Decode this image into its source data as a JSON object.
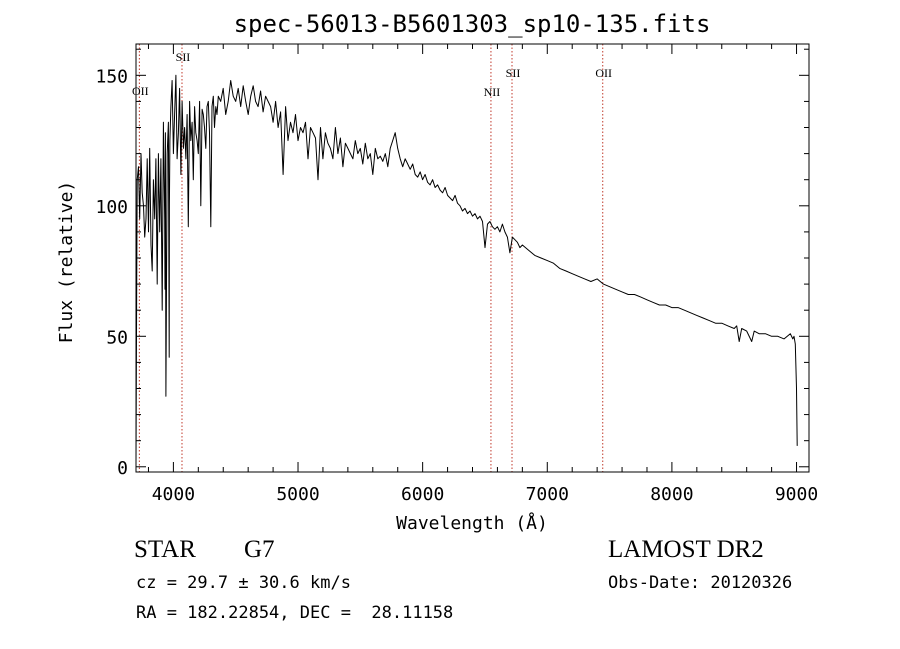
{
  "chart_data": {
    "type": "line",
    "title": "spec-56013-B5601303_sp10-135.fits",
    "xlabel": "Wavelength (Å)",
    "ylabel": "Flux (relative)",
    "xlim": [
      3700,
      9100
    ],
    "ylim": [
      -2,
      162
    ],
    "x_ticks": [
      4000,
      5000,
      6000,
      7000,
      8000,
      9000
    ],
    "y_ticks": [
      0,
      50,
      100,
      150
    ],
    "series": [
      {
        "name": "flux",
        "x": [
          3700,
          3705,
          3710,
          3720,
          3730,
          3740,
          3750,
          3760,
          3770,
          3780,
          3790,
          3800,
          3810,
          3820,
          3830,
          3840,
          3850,
          3860,
          3870,
          3880,
          3890,
          3900,
          3910,
          3920,
          3930,
          3933,
          3936,
          3940,
          3950,
          3960,
          3966,
          3968,
          3972,
          3980,
          3990,
          4000,
          4010,
          4020,
          4030,
          4040,
          4050,
          4060,
          4070,
          4080,
          4090,
          4100,
          4110,
          4120,
          4130,
          4140,
          4150,
          4160,
          4170,
          4180,
          4190,
          4200,
          4210,
          4220,
          4230,
          4240,
          4250,
          4260,
          4270,
          4280,
          4290,
          4300,
          4310,
          4320,
          4330,
          4340,
          4350,
          4360,
          4380,
          4400,
          4420,
          4440,
          4460,
          4480,
          4500,
          4520,
          4540,
          4560,
          4580,
          4600,
          4620,
          4640,
          4660,
          4680,
          4700,
          4720,
          4740,
          4760,
          4780,
          4800,
          4820,
          4840,
          4860,
          4880,
          4900,
          4920,
          4940,
          4960,
          4980,
          5000,
          5020,
          5040,
          5060,
          5080,
          5100,
          5120,
          5140,
          5160,
          5180,
          5200,
          5220,
          5240,
          5260,
          5280,
          5300,
          5320,
          5340,
          5360,
          5380,
          5400,
          5420,
          5440,
          5460,
          5480,
          5500,
          5520,
          5540,
          5560,
          5580,
          5600,
          5620,
          5640,
          5660,
          5680,
          5700,
          5720,
          5740,
          5760,
          5780,
          5800,
          5820,
          5840,
          5860,
          5880,
          5900,
          5920,
          5940,
          5960,
          5980,
          6000,
          6020,
          6040,
          6060,
          6080,
          6100,
          6120,
          6140,
          6160,
          6180,
          6200,
          6220,
          6240,
          6260,
          6280,
          6300,
          6320,
          6340,
          6360,
          6380,
          6400,
          6420,
          6440,
          6460,
          6480,
          6500,
          6520,
          6540,
          6560,
          6580,
          6600,
          6620,
          6640,
          6660,
          6680,
          6700,
          6720,
          6740,
          6760,
          6780,
          6800,
          6850,
          6900,
          6950,
          7000,
          7050,
          7100,
          7150,
          7200,
          7250,
          7300,
          7350,
          7400,
          7450,
          7500,
          7550,
          7600,
          7650,
          7700,
          7750,
          7800,
          7850,
          7900,
          7950,
          8000,
          8050,
          8100,
          8150,
          8200,
          8250,
          8300,
          8350,
          8400,
          8450,
          8500,
          8520,
          8540,
          8560,
          8600,
          8640,
          8660,
          8700,
          8750,
          8800,
          8850,
          8900,
          8950,
          8970,
          8980,
          8990,
          9000,
          9005
        ],
        "y": [
          2,
          60,
          110,
          115,
          95,
          120,
          105,
          100,
          88,
          95,
          118,
          90,
          122,
          85,
          75,
          110,
          95,
          118,
          70,
          120,
          90,
          118,
          60,
          132,
          95,
          68,
          128,
          27,
          120,
          132,
          42,
          100,
          125,
          138,
          148,
          120,
          135,
          150,
          118,
          128,
          145,
          112,
          140,
          122,
          130,
          118,
          135,
          92,
          140,
          125,
          132,
          110,
          138,
          128,
          125,
          120,
          140,
          100,
          137,
          135,
          130,
          122,
          138,
          140,
          128,
          92,
          138,
          142,
          130,
          138,
          135,
          142,
          140,
          145,
          135,
          140,
          148,
          142,
          140,
          145,
          138,
          146,
          140,
          135,
          142,
          146,
          140,
          138,
          144,
          136,
          142,
          140,
          138,
          132,
          140,
          130,
          136,
          112,
          138,
          125,
          132,
          128,
          135,
          125,
          130,
          128,
          132,
          118,
          130,
          128,
          126,
          110,
          130,
          118,
          128,
          124,
          122,
          118,
          130,
          120,
          126,
          115,
          124,
          122,
          120,
          118,
          125,
          120,
          122,
          116,
          124,
          118,
          120,
          112,
          122,
          118,
          119,
          117,
          120,
          115,
          122,
          125,
          128,
          122,
          118,
          115,
          118,
          116,
          114,
          116,
          112,
          111,
          113,
          110,
          112,
          109,
          108,
          110,
          107,
          108,
          106,
          105,
          107,
          104,
          103,
          102,
          104,
          101,
          100,
          98,
          99,
          97,
          98,
          96,
          97,
          95,
          96,
          94,
          84,
          93,
          94,
          92,
          91,
          92,
          90,
          93,
          90,
          88,
          82,
          88,
          87,
          86,
          84,
          85,
          83,
          81,
          80,
          79,
          78,
          76,
          75,
          74,
          73,
          72,
          71,
          72,
          70,
          69,
          68,
          67,
          66,
          66,
          65,
          64,
          63,
          62,
          62,
          61,
          61,
          60,
          59,
          58,
          57,
          56,
          55,
          55,
          54,
          53,
          54,
          48,
          53,
          52,
          48,
          52,
          51,
          51,
          50,
          50,
          49,
          51,
          49,
          50,
          47,
          30,
          8
        ]
      }
    ],
    "lines": [
      {
        "label": "OII",
        "x": 3727
      },
      {
        "label": "SII",
        "x": 4069
      },
      {
        "label": "NII",
        "x": 6548
      },
      {
        "label": "SII",
        "x": 6717
      },
      {
        "label": "OII",
        "x": 7445
      }
    ]
  },
  "info": {
    "object_class": "STAR",
    "object_type": "G7",
    "cz": "cz = 29.7 ± 30.6 km/s",
    "radec": "RA = 182.22854, DEC =  28.11158",
    "survey": "LAMOST DR2",
    "obs_date": "Obs-Date: 20120326"
  }
}
